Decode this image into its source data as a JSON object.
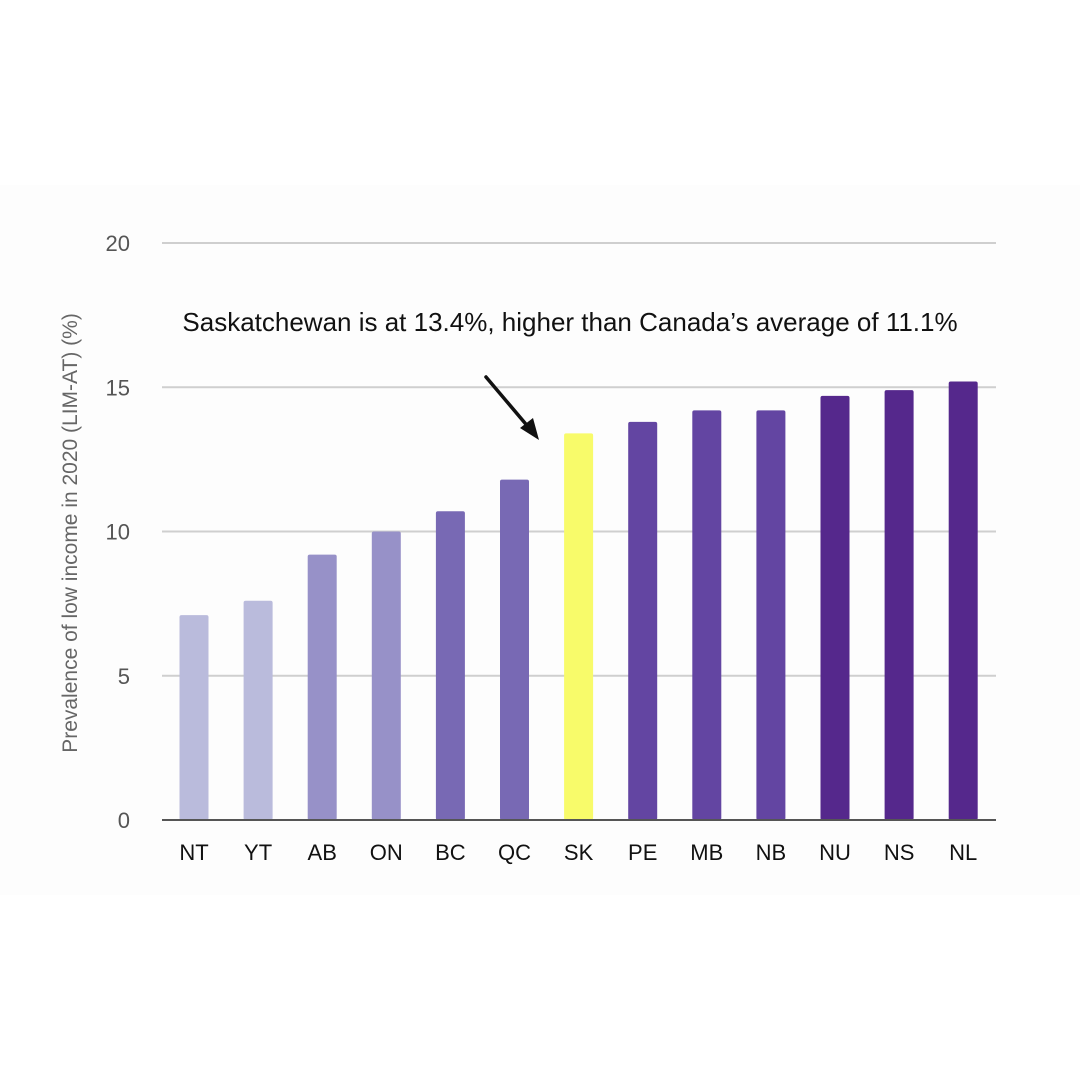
{
  "chart_data": {
    "type": "bar",
    "categories": [
      "NT",
      "YT",
      "AB",
      "ON",
      "BC",
      "QC",
      "SK",
      "PE",
      "MB",
      "NB",
      "NU",
      "NS",
      "NL"
    ],
    "values": [
      7.1,
      7.6,
      9.2,
      10.0,
      10.7,
      11.8,
      13.4,
      13.8,
      14.2,
      14.2,
      14.7,
      14.9,
      15.2
    ],
    "bar_colors": [
      "#babbdc",
      "#babbdc",
      "#9791c8",
      "#9791c8",
      "#7869b4",
      "#7869b4",
      "#f8fb6a",
      "#6345a2",
      "#6345a2",
      "#6345a2",
      "#55288c",
      "#55288c",
      "#55288c"
    ],
    "title": "",
    "xlabel": "",
    "ylabel": "Prevalence of low income in 2020 (LIM-AT) (%)",
    "ylim": [
      0,
      20
    ],
    "yticks": [
      0,
      5,
      10,
      15,
      20
    ],
    "grid": true,
    "legend": "none",
    "highlight_category": "SK",
    "annotation": "Saskatchewan is at 13.4%, higher than Canada’s average of 11.1%"
  }
}
